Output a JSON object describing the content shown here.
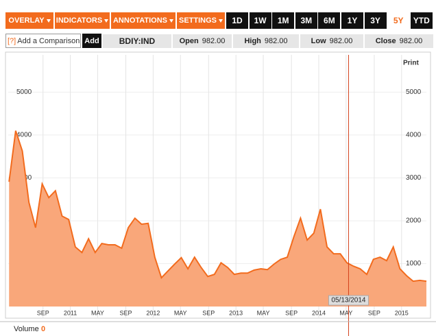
{
  "toolbar": {
    "menus": [
      "OVERLAY",
      "INDICATORS",
      "ANNOTATIONS",
      "SETTINGS"
    ],
    "ranges": [
      "1D",
      "1W",
      "1M",
      "3M",
      "6M",
      "1Y",
      "3Y",
      "5Y",
      "YTD"
    ],
    "selected_range": "5Y",
    "help": "[?]",
    "comparison_placeholder": "Add a Comparison",
    "add_button": "Add",
    "print": "Print"
  },
  "quote": {
    "symbol": "BDIY:IND",
    "fields": [
      {
        "label": "Open",
        "value": "982.00"
      },
      {
        "label": "High",
        "value": "982.00"
      },
      {
        "label": "Low",
        "value": "982.00"
      },
      {
        "label": "Close",
        "value": "982.00"
      }
    ]
  },
  "volume": {
    "label": "Volume",
    "value": 0
  },
  "chart_data": {
    "type": "area",
    "color": "#f26b1d",
    "fill": "#f9a77a",
    "grid": true,
    "x": [
      2010.26,
      2010.34,
      2010.42,
      2010.5,
      2010.58,
      2010.66,
      2010.74,
      2010.82,
      2010.9,
      2010.98,
      2011.06,
      2011.14,
      2011.22,
      2011.3,
      2011.38,
      2011.46,
      2011.54,
      2011.62,
      2011.7,
      2011.78,
      2011.86,
      2011.94,
      2012.02,
      2012.1,
      2012.18,
      2012.26,
      2012.34,
      2012.42,
      2012.5,
      2012.58,
      2012.66,
      2012.74,
      2012.82,
      2012.9,
      2012.98,
      2013.06,
      2013.14,
      2013.22,
      2013.3,
      2013.38,
      2013.46,
      2013.54,
      2013.62,
      2013.7,
      2013.78,
      2013.86,
      2013.94,
      2014.02,
      2014.1,
      2014.18,
      2014.26,
      2014.34,
      2014.42,
      2014.5,
      2014.58,
      2014.66,
      2014.74,
      2014.82,
      2014.9,
      2014.98,
      2015.06,
      2015.14,
      2015.22,
      2015.3
    ],
    "values": [
      2910,
      4100,
      3630,
      2430,
      1840,
      2860,
      2540,
      2700,
      2110,
      2030,
      1390,
      1260,
      1580,
      1260,
      1470,
      1440,
      1440,
      1360,
      1840,
      2060,
      1920,
      1940,
      1150,
      670,
      830,
      990,
      1140,
      880,
      1150,
      910,
      700,
      750,
      1020,
      910,
      750,
      780,
      780,
      850,
      880,
      860,
      990,
      1100,
      1150,
      1630,
      2060,
      1550,
      1710,
      2270,
      1390,
      1230,
      1230,
      1020,
      940,
      880,
      750,
      1100,
      1150,
      1070,
      1390,
      880,
      720,
      590,
      610,
      590
    ],
    "xlim": [
      2010.25,
      2015.3
    ],
    "xticks": [
      {
        "value": 2010.67,
        "label": "SEP"
      },
      2011,
      {
        "value": 2011.33,
        "label": "MAY"
      },
      {
        "value": 2011.67,
        "label": "SEP"
      },
      2012,
      {
        "value": 2012.33,
        "label": "MAY"
      },
      {
        "value": 2012.67,
        "label": "SEP"
      },
      2013,
      {
        "value": 2013.33,
        "label": "MAY"
      },
      {
        "value": 2013.67,
        "label": "SEP"
      },
      2014,
      {
        "value": 2014.33,
        "label": "MAY"
      },
      {
        "value": 2014.67,
        "label": "SEP"
      },
      2015
    ],
    "ylim": [
      0,
      5870
    ],
    "yticks": [
      1000,
      2000,
      3000,
      4000,
      5000
    ],
    "cursor": {
      "x": 2014.36,
      "label": "05/13/2014"
    }
  }
}
